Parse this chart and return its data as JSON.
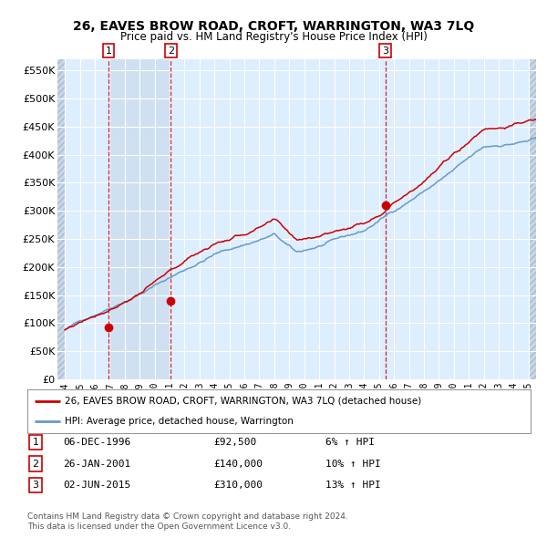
{
  "title": "26, EAVES BROW ROAD, CROFT, WARRINGTON, WA3 7LQ",
  "subtitle": "Price paid vs. HM Land Registry's House Price Index (HPI)",
  "legend_line1": "26, EAVES BROW ROAD, CROFT, WARRINGTON, WA3 7LQ (detached house)",
  "legend_line2": "HPI: Average price, detached house, Warrington",
  "transactions": [
    {
      "num": 1,
      "date": "06-DEC-1996",
      "price": 92500,
      "price_str": "£92,500",
      "pct": "6%",
      "x_year": 1996.92
    },
    {
      "num": 2,
      "date": "26-JAN-2001",
      "price": 140000,
      "price_str": "£140,000",
      "pct": "10%",
      "x_year": 2001.07
    },
    {
      "num": 3,
      "date": "02-JUN-2015",
      "price": 310000,
      "price_str": "£310,000",
      "pct": "13%",
      "x_year": 2015.42
    }
  ],
  "copyright_text1": "Contains HM Land Registry data © Crown copyright and database right 2024.",
  "copyright_text2": "This data is licensed under the Open Government Licence v3.0.",
  "ylim": [
    0,
    570000
  ],
  "yticks": [
    0,
    50000,
    100000,
    150000,
    200000,
    250000,
    300000,
    350000,
    400000,
    450000,
    500000,
    550000
  ],
  "ytick_labels": [
    "£0",
    "£50K",
    "£100K",
    "£150K",
    "£200K",
    "£250K",
    "£300K",
    "£350K",
    "£400K",
    "£450K",
    "£500K",
    "£550K"
  ],
  "xlim_start": 1993.5,
  "xlim_end": 2025.5,
  "xticks": [
    1994,
    1995,
    1996,
    1997,
    1998,
    1999,
    2000,
    2001,
    2002,
    2003,
    2004,
    2005,
    2006,
    2007,
    2008,
    2009,
    2010,
    2011,
    2012,
    2013,
    2014,
    2015,
    2016,
    2017,
    2018,
    2019,
    2020,
    2021,
    2022,
    2023,
    2024,
    2025
  ],
  "color_red": "#cc0000",
  "color_blue": "#6699cc",
  "color_bg_chart": "#ddeeff",
  "color_bg_shaded": "#ccddef",
  "color_grid": "#ffffff",
  "color_hatch_face": "#c8d8e8",
  "color_hatch_edge": "#aabbcc"
}
